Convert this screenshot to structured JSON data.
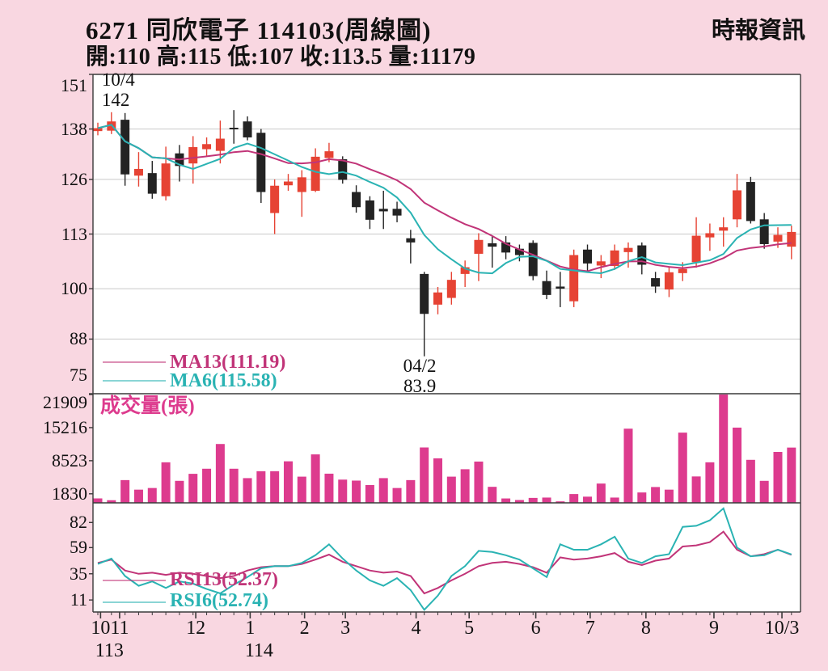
{
  "header": {
    "title": "6271  同欣電子 114103(周線圖)",
    "source": "時報資訊",
    "ohlc_line": "開:110 高:115 低:107 收:113.5 量:11179"
  },
  "main_chart": {
    "legend": {
      "ma13": "MA13(111.19)",
      "ma6": "MA6(115.58)"
    }
  },
  "volume": {
    "label": "成交量(張)"
  },
  "rsi": {
    "legend": {
      "rsi13": "RSI13(52.37)",
      "rsi6": "RSI6(52.74)"
    }
  },
  "colors": {
    "background": "#f9d7e1",
    "plot_bg": "#ffffff",
    "border": "#3a3a3a",
    "grid": "#c9c9c9",
    "candle_up": "#e64334",
    "candle_down": "#232323",
    "ma13": "#c13478",
    "ma6": "#2ab3b3",
    "volume_bar": "#dd3b8e",
    "text": "#111111"
  },
  "chart_data": {
    "type": "candlestick+volume+rsi",
    "title": "6271 同欣電子 114103 weekly chart",
    "weeks": 52,
    "main_y_ticks": [
      151,
      138,
      126,
      113,
      100,
      88,
      75
    ],
    "main_grid_values": [
      138,
      126,
      113,
      100,
      88
    ],
    "main_y_range": [
      75,
      151
    ],
    "candles": [
      [
        137.5,
        139.5,
        136.5,
        138.2
      ],
      [
        137.6,
        142.0,
        136.8,
        139.8
      ],
      [
        140.2,
        141.8,
        124.5,
        127.2
      ],
      [
        126.9,
        132.5,
        124.3,
        128.5
      ],
      [
        127.5,
        130.4,
        121.4,
        122.6
      ],
      [
        122.0,
        133.8,
        121.0,
        129.8
      ],
      [
        132.2,
        134.2,
        125.5,
        129.2
      ],
      [
        129.8,
        136.3,
        125.0,
        133.7
      ],
      [
        133.2,
        136.0,
        131.5,
        134.4
      ],
      [
        132.8,
        140.0,
        129.8,
        135.7
      ],
      [
        138.3,
        142.5,
        134.5,
        138.2
      ],
      [
        139.8,
        141.0,
        135.3,
        136.0
      ],
      [
        137.1,
        138.0,
        120.4,
        123.0
      ],
      [
        118.0,
        126.0,
        113.0,
        124.5
      ],
      [
        124.6,
        127.3,
        123.3,
        125.5
      ],
      [
        123.0,
        128.2,
        117.1,
        126.5
      ],
      [
        123.3,
        133.4,
        123.0,
        131.4
      ],
      [
        131.1,
        134.7,
        130.1,
        132.7
      ],
      [
        130.8,
        131.5,
        125.0,
        125.9
      ],
      [
        123.0,
        124.6,
        118.1,
        119.4
      ],
      [
        121.0,
        122.0,
        114.2,
        116.4
      ],
      [
        119.0,
        123.3,
        114.2,
        118.4
      ],
      [
        119.0,
        120.7,
        115.8,
        117.4
      ],
      [
        112.0,
        114.0,
        106.0,
        111.0
      ],
      [
        103.5,
        104.0,
        83.9,
        94.0
      ],
      [
        96.2,
        100.4,
        93.9,
        99.1
      ],
      [
        97.8,
        104.0,
        96.2,
        102.1
      ],
      [
        103.5,
        106.7,
        100.4,
        105.1
      ],
      [
        108.3,
        113.2,
        101.8,
        111.6
      ],
      [
        110.8,
        112.6,
        105.0,
        110.0
      ],
      [
        111.0,
        112.5,
        107.0,
        108.6
      ],
      [
        109.5,
        110.5,
        106.5,
        108.0
      ],
      [
        110.9,
        111.5,
        102.0,
        103.0
      ],
      [
        101.8,
        104.3,
        97.5,
        98.5
      ],
      [
        100.5,
        104.0,
        95.6,
        100.0
      ],
      [
        97.0,
        109.3,
        95.6,
        108.0
      ],
      [
        109.3,
        110.5,
        104.0,
        106.0
      ],
      [
        105.5,
        108.0,
        102.5,
        106.5
      ],
      [
        105.4,
        110.5,
        104.5,
        109.1
      ],
      [
        108.7,
        111.0,
        105.0,
        109.7
      ],
      [
        110.3,
        111.0,
        103.4,
        105.7
      ],
      [
        102.5,
        104.0,
        99.0,
        100.5
      ],
      [
        99.8,
        105.0,
        98.0,
        103.9
      ],
      [
        103.7,
        106.3,
        101.8,
        104.7
      ],
      [
        106.3,
        117.0,
        105.0,
        112.6
      ],
      [
        112.2,
        115.5,
        109.0,
        113.2
      ],
      [
        113.8,
        117.0,
        110.0,
        114.6
      ],
      [
        116.5,
        127.3,
        114.6,
        123.4
      ],
      [
        125.4,
        126.6,
        115.5,
        116.1
      ],
      [
        116.5,
        118.0,
        109.5,
        110.6
      ],
      [
        111.2,
        114.6,
        109.7,
        112.8
      ],
      [
        110.0,
        115.0,
        107.0,
        113.5
      ]
    ],
    "ma_periods": {
      "short": 6,
      "long": 13
    },
    "volume_y_ticks": [
      21909,
      15216,
      8523,
      1830
    ],
    "volumes": [
      900,
      530,
      4600,
      2670,
      3000,
      8200,
      4450,
      5870,
      6900,
      11900,
      6900,
      5000,
      6400,
      6400,
      8400,
      5300,
      9800,
      5900,
      4700,
      4500,
      3600,
      5000,
      3000,
      4600,
      11200,
      9000,
      5300,
      6800,
      8350,
      3240,
      890,
      570,
      1000,
      1070,
      300,
      1780,
      1250,
      3900,
      1070,
      15000,
      2100,
      3200,
      2670,
      14200,
      5340,
      8200,
      21909,
      15216,
      8700,
      4450,
      10300,
      11179
    ],
    "rsi_y_ticks": [
      82,
      59,
      35,
      11
    ],
    "rsi6": [
      44,
      49,
      33,
      24,
      28,
      22,
      28,
      26,
      21,
      17,
      25,
      32,
      40,
      42,
      42,
      45,
      52,
      62,
      49,
      38,
      29,
      24,
      31,
      20,
      2,
      15,
      33,
      42,
      56,
      55,
      52,
      48,
      40,
      32,
      62,
      57,
      57,
      62,
      69,
      49,
      45,
      51,
      53,
      78,
      79,
      84,
      95,
      59,
      51,
      52,
      57,
      52.74
    ],
    "rsi13": [
      45,
      48,
      38,
      35,
      36,
      34,
      36,
      35,
      33,
      31,
      33,
      38,
      41,
      42,
      42,
      44,
      48,
      52.6,
      46,
      42,
      38,
      36,
      37,
      33,
      17,
      22,
      29,
      35,
      42,
      45,
      46,
      44,
      41,
      36,
      50,
      48,
      49,
      51,
      54,
      46,
      43,
      47,
      49,
      60,
      61,
      64,
      73.6,
      57,
      51,
      53,
      57,
      52.37
    ],
    "months": [
      {
        "label": "10",
        "week": 1.2,
        "year": "113"
      },
      {
        "label": "11",
        "week": 2.6,
        "year": ""
      },
      {
        "label": "12",
        "week": 8.2,
        "year": ""
      },
      {
        "label": "1",
        "week": 12.2,
        "year": "114"
      },
      {
        "label": "2",
        "week": 16.2,
        "year": ""
      },
      {
        "label": "3",
        "week": 19.2,
        "year": ""
      },
      {
        "label": "4",
        "week": 24.4,
        "year": ""
      },
      {
        "label": "5",
        "week": 28.3,
        "year": ""
      },
      {
        "label": "6",
        "week": 33.2,
        "year": ""
      },
      {
        "label": "7",
        "week": 37.2,
        "year": ""
      },
      {
        "label": "8",
        "week": 41.3,
        "year": ""
      },
      {
        "label": "9",
        "week": 46.3,
        "year": ""
      },
      {
        "label": "10/3",
        "week": 51.3,
        "year": ""
      }
    ],
    "annotations": [
      {
        "line1": "10/4",
        "line2": "142",
        "week": 2,
        "anchor": "high"
      },
      {
        "line1": "04/2",
        "line2": "83.9",
        "week": 25,
        "anchor": "low"
      }
    ]
  }
}
